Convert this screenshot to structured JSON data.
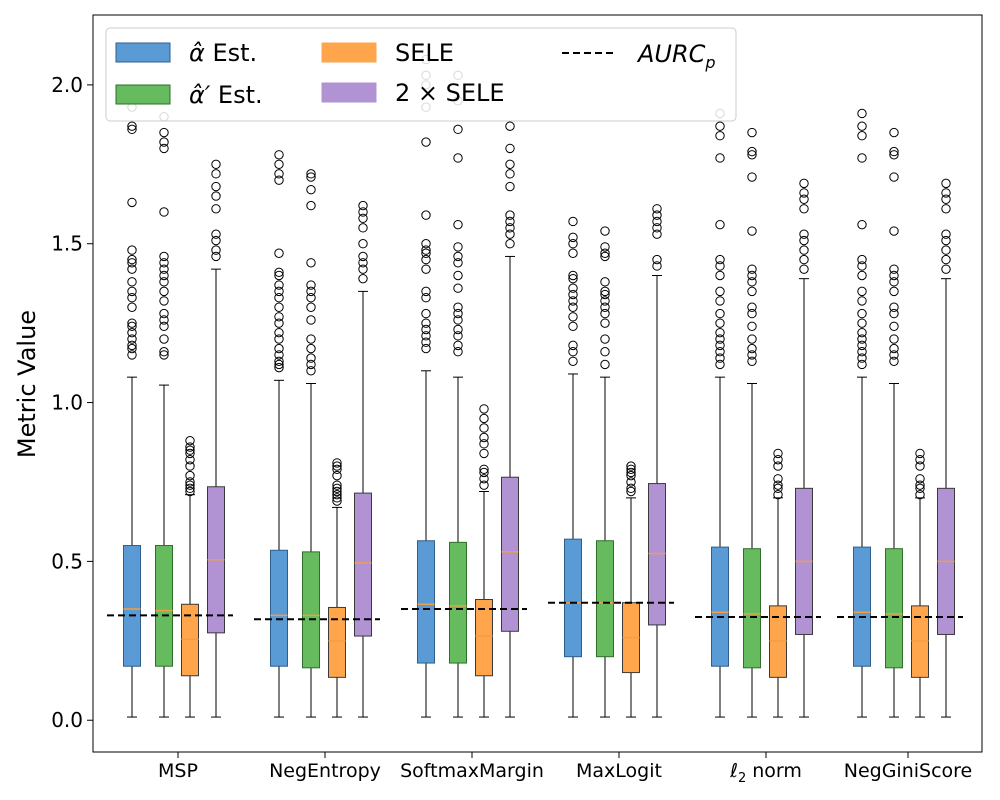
{
  "chart_data": {
    "type": "box",
    "title": "",
    "xlabel": "",
    "ylabel": "Metric Value",
    "ylim": [
      -0.1,
      2.22
    ],
    "yticks": [
      0.0,
      0.5,
      1.0,
      1.5,
      2.0
    ],
    "ytick_labels": [
      "0.0",
      "0.5",
      "1.0",
      "1.5",
      "2.0"
    ],
    "categories": [
      "MSP",
      "NegEntropy",
      "SoftmaxMargin",
      "MaxLogit",
      "ℓ2 norm",
      "NegGiniScore"
    ],
    "legend_position": "top-left",
    "series": [
      {
        "name": "α̂ Est.",
        "color": "#5b9bd5",
        "edge": "#2e5f8a",
        "median_color": "#f39c45",
        "boxes": [
          {
            "whislo": 0.01,
            "q1": 0.17,
            "median": 0.35,
            "q3": 0.55,
            "whishi": 1.08,
            "fliers": [
              1.15,
              1.17,
              1.18,
              1.2,
              1.22,
              1.24,
              1.25,
              1.3,
              1.33,
              1.35,
              1.38,
              1.42,
              1.44,
              1.45,
              1.48,
              1.63,
              1.86,
              1.87,
              1.93,
              1.97
            ]
          },
          {
            "whislo": 0.01,
            "q1": 0.17,
            "median": 0.33,
            "q3": 0.535,
            "whishi": 1.07,
            "fliers": [
              1.11,
              1.12,
              1.13,
              1.15,
              1.17,
              1.2,
              1.22,
              1.25,
              1.27,
              1.3,
              1.33,
              1.35,
              1.37,
              1.4,
              1.41,
              1.47,
              1.7,
              1.72,
              1.75,
              1.78
            ]
          },
          {
            "whislo": 0.01,
            "q1": 0.18,
            "median": 0.365,
            "q3": 0.565,
            "whishi": 1.1,
            "fliers": [
              1.17,
              1.19,
              1.21,
              1.23,
              1.25,
              1.28,
              1.33,
              1.35,
              1.42,
              1.45,
              1.47,
              1.48,
              1.5,
              1.59,
              1.82,
              1.93,
              2.0,
              2.03,
              2.08
            ]
          },
          {
            "whislo": 0.01,
            "q1": 0.2,
            "median": 0.37,
            "q3": 0.57,
            "whishi": 1.09,
            "fliers": [
              1.13,
              1.16,
              1.18,
              1.24,
              1.27,
              1.3,
              1.32,
              1.34,
              1.36,
              1.39,
              1.4,
              1.47,
              1.5,
              1.52,
              1.57
            ]
          },
          {
            "whislo": 0.01,
            "q1": 0.17,
            "median": 0.34,
            "q3": 0.545,
            "whishi": 1.08,
            "fliers": [
              1.12,
              1.14,
              1.16,
              1.18,
              1.2,
              1.22,
              1.25,
              1.28,
              1.32,
              1.35,
              1.4,
              1.43,
              1.45,
              1.56,
              1.77,
              1.84,
              1.87,
              1.91
            ]
          },
          {
            "whislo": 0.01,
            "q1": 0.17,
            "median": 0.34,
            "q3": 0.545,
            "whishi": 1.08,
            "fliers": [
              1.12,
              1.14,
              1.16,
              1.18,
              1.2,
              1.22,
              1.25,
              1.28,
              1.32,
              1.35,
              1.4,
              1.43,
              1.45,
              1.56,
              1.77,
              1.84,
              1.87,
              1.91
            ]
          }
        ]
      },
      {
        "name": "α̂′ Est.",
        "color": "#66bb5f",
        "edge": "#2f6f2a",
        "median_color": "#f39c45",
        "boxes": [
          {
            "whislo": 0.01,
            "q1": 0.17,
            "median": 0.345,
            "q3": 0.55,
            "whishi": 1.055,
            "fliers": [
              1.15,
              1.16,
              1.2,
              1.24,
              1.26,
              1.28,
              1.32,
              1.35,
              1.38,
              1.4,
              1.42,
              1.44,
              1.46,
              1.6,
              1.8,
              1.82,
              1.85,
              1.9
            ]
          },
          {
            "whislo": 0.01,
            "q1": 0.165,
            "median": 0.33,
            "q3": 0.53,
            "whishi": 1.06,
            "fliers": [
              1.1,
              1.12,
              1.14,
              1.17,
              1.2,
              1.26,
              1.3,
              1.33,
              1.35,
              1.37,
              1.44,
              1.62,
              1.67,
              1.71,
              1.72
            ]
          },
          {
            "whislo": 0.01,
            "q1": 0.18,
            "median": 0.36,
            "q3": 0.56,
            "whishi": 1.08,
            "fliers": [
              1.16,
              1.18,
              1.21,
              1.23,
              1.26,
              1.28,
              1.3,
              1.36,
              1.4,
              1.44,
              1.46,
              1.49,
              1.56,
              1.77,
              1.86,
              1.95,
              2.03
            ]
          },
          {
            "whislo": 0.01,
            "q1": 0.2,
            "median": 0.37,
            "q3": 0.565,
            "whishi": 1.08,
            "fliers": [
              1.12,
              1.16,
              1.2,
              1.25,
              1.28,
              1.3,
              1.32,
              1.34,
              1.35,
              1.38,
              1.46,
              1.47,
              1.49,
              1.54
            ]
          },
          {
            "whislo": 0.01,
            "q1": 0.165,
            "median": 0.335,
            "q3": 0.54,
            "whishi": 1.06,
            "fliers": [
              1.13,
              1.15,
              1.17,
              1.2,
              1.24,
              1.28,
              1.3,
              1.35,
              1.38,
              1.4,
              1.42,
              1.54,
              1.71,
              1.78,
              1.79,
              1.85
            ]
          },
          {
            "whislo": 0.01,
            "q1": 0.165,
            "median": 0.335,
            "q3": 0.54,
            "whishi": 1.06,
            "fliers": [
              1.13,
              1.15,
              1.17,
              1.2,
              1.24,
              1.28,
              1.3,
              1.35,
              1.38,
              1.4,
              1.42,
              1.54,
              1.71,
              1.78,
              1.79,
              1.85
            ]
          }
        ]
      },
      {
        "name": "SELE",
        "color": "#ffa64d",
        "edge": "#3a3a3a",
        "median_color": "#f39c45",
        "boxes": [
          {
            "whislo": 0.01,
            "q1": 0.14,
            "median": 0.255,
            "q3": 0.365,
            "whishi": 0.71,
            "fliers": [
              0.72,
              0.73,
              0.74,
              0.75,
              0.77,
              0.8,
              0.82,
              0.84,
              0.85,
              0.86,
              0.88
            ]
          },
          {
            "whislo": 0.01,
            "q1": 0.135,
            "median": 0.25,
            "q3": 0.355,
            "whishi": 0.67,
            "fliers": [
              0.69,
              0.7,
              0.71,
              0.72,
              0.73,
              0.74,
              0.77,
              0.79,
              0.8,
              0.81
            ]
          },
          {
            "whislo": 0.01,
            "q1": 0.14,
            "median": 0.265,
            "q3": 0.38,
            "whishi": 0.72,
            "fliers": [
              0.74,
              0.76,
              0.78,
              0.79,
              0.84,
              0.87,
              0.89,
              0.92,
              0.95,
              0.98
            ]
          },
          {
            "whislo": 0.01,
            "q1": 0.15,
            "median": 0.26,
            "q3": 0.37,
            "whishi": 0.7,
            "fliers": [
              0.72,
              0.73,
              0.75,
              0.77,
              0.78,
              0.79,
              0.8
            ]
          },
          {
            "whislo": 0.01,
            "q1": 0.135,
            "median": 0.25,
            "q3": 0.36,
            "whishi": 0.7,
            "fliers": [
              0.71,
              0.73,
              0.74,
              0.76,
              0.8,
              0.82,
              0.84
            ]
          },
          {
            "whislo": 0.01,
            "q1": 0.135,
            "median": 0.25,
            "q3": 0.36,
            "whishi": 0.7,
            "fliers": [
              0.71,
              0.73,
              0.74,
              0.76,
              0.8,
              0.82,
              0.84
            ]
          }
        ]
      },
      {
        "name": "2 × SELE",
        "color": "#b193d4",
        "edge": "#3a3a3a",
        "median_color": "#f39c45",
        "boxes": [
          {
            "whislo": 0.01,
            "q1": 0.275,
            "median": 0.505,
            "q3": 0.735,
            "whishi": 1.42,
            "fliers": [
              1.46,
              1.48,
              1.51,
              1.53,
              1.61,
              1.65,
              1.68,
              1.72,
              1.75
            ]
          },
          {
            "whislo": 0.01,
            "q1": 0.265,
            "median": 0.495,
            "q3": 0.715,
            "whishi": 1.35,
            "fliers": [
              1.39,
              1.42,
              1.44,
              1.46,
              1.5,
              1.55,
              1.58,
              1.6,
              1.62
            ]
          },
          {
            "whislo": 0.01,
            "q1": 0.28,
            "median": 0.53,
            "q3": 0.765,
            "whishi": 1.46,
            "fliers": [
              1.5,
              1.53,
              1.55,
              1.57,
              1.59,
              1.68,
              1.72,
              1.75,
              1.8,
              1.87
            ]
          },
          {
            "whislo": 0.01,
            "q1": 0.3,
            "median": 0.525,
            "q3": 0.745,
            "whishi": 1.4,
            "fliers": [
              1.43,
              1.45,
              1.53,
              1.55,
              1.57,
              1.59,
              1.61
            ]
          },
          {
            "whislo": 0.01,
            "q1": 0.27,
            "median": 0.5,
            "q3": 0.73,
            "whishi": 1.39,
            "fliers": [
              1.42,
              1.45,
              1.48,
              1.51,
              1.53,
              1.61,
              1.64,
              1.66,
              1.69
            ]
          },
          {
            "whislo": 0.01,
            "q1": 0.27,
            "median": 0.5,
            "q3": 0.73,
            "whishi": 1.39,
            "fliers": [
              1.42,
              1.45,
              1.48,
              1.51,
              1.53,
              1.61,
              1.64,
              1.66,
              1.69
            ]
          }
        ]
      }
    ],
    "reference_line": {
      "name": "AURC_p",
      "style": "dashed",
      "color": "#000000",
      "values": [
        0.33,
        0.318,
        0.35,
        0.37,
        0.325,
        0.325
      ]
    },
    "legend": {
      "entries": [
        {
          "prefix": "α̂",
          "suffix": " Est."
        },
        {
          "prefix": "α̂′",
          "suffix": " Est."
        },
        {
          "prefix": "SELE",
          "suffix": ""
        },
        {
          "prefix": "2 × SELE",
          "suffix": ""
        },
        {
          "prefix": "AURC",
          "suffix": "p"
        }
      ]
    }
  }
}
